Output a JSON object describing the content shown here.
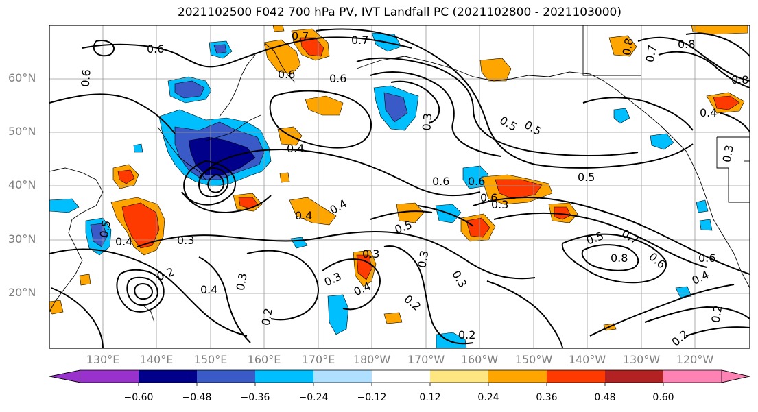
{
  "title": "2021102500 F042 700 hPa PV, IVT Landfall PC (2021102800 - 2021103000)",
  "axes": {
    "lat_labels": [
      "60°N",
      "50°N",
      "40°N",
      "30°N",
      "20°N"
    ],
    "lon_labels": [
      "130°E",
      "140°E",
      "150°E",
      "160°E",
      "170°E",
      "180°W",
      "170°W",
      "160°W",
      "150°W",
      "140°W",
      "130°W",
      "120°W"
    ]
  },
  "colorbar": {
    "ticks": [
      "−0.60",
      "−0.48",
      "−0.36",
      "−0.24",
      "−0.12",
      "0.12",
      "0.24",
      "0.36",
      "0.48",
      "0.60"
    ],
    "colors": [
      "#9932cc",
      "#00008b",
      "#3a5bc7",
      "#00bfff",
      "#b0e0ff",
      "#ffffff",
      "#ffe680",
      "#ffa500",
      "#ff3a00",
      "#b22222",
      "#ff82b4"
    ]
  },
  "contour_labels": [
    "0.6",
    "0.7",
    "0.6",
    "0.6",
    "0.7",
    "0.6",
    "0.4",
    "0.3",
    "0.5",
    "0.5",
    "0.4",
    "0.6",
    "0.6",
    "0.5",
    "0.6",
    "0.4",
    "0.5",
    "0.3",
    "0.3",
    "0.5",
    "0.7",
    "0.8",
    "0.6",
    "0.4",
    "0.3",
    "0.2",
    "0.4",
    "0.3",
    "0.2",
    "0.3",
    "0.4",
    "0.3",
    "0.2",
    "0.2",
    "0.2",
    "0.2",
    "0.4",
    "0.8",
    "0.7",
    "0.8",
    "0.4",
    "0.3",
    "0.5",
    "0.8",
    "0.6",
    "0.3"
  ]
}
